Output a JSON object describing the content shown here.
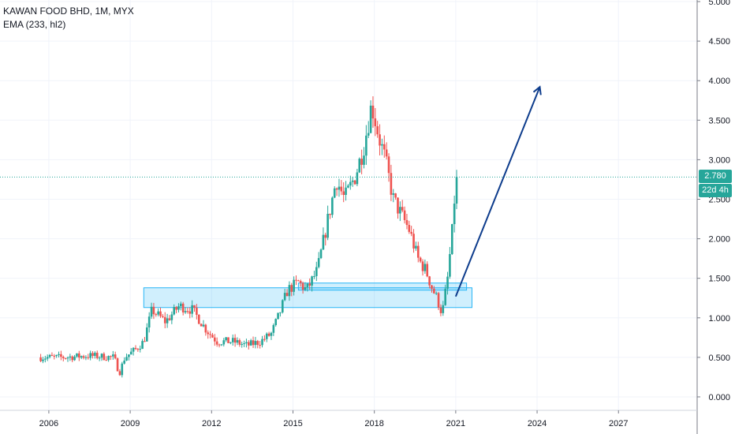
{
  "legend": {
    "symbol_line": "KAWAN FOOD BHD, 1M, MYX",
    "indicator_line": "EMA (233, hl2)"
  },
  "price_tag": {
    "value": "2.780",
    "color": "#26a69a"
  },
  "countdown_tag": {
    "value": "22d 4h",
    "color": "#26a69a"
  },
  "colors": {
    "up": "#26a69a",
    "down": "#ef5350",
    "zone": "#29b6f6",
    "arrow": "#0d3c8c",
    "grid": "#f0f3fa",
    "axis_text": "#131722"
  },
  "chart_data": {
    "type": "candlestick",
    "x_axis": {
      "range": [
        2004.2,
        2029.9
      ],
      "ticks": [
        2006,
        2009,
        2012,
        2015,
        2018,
        2021,
        2024,
        2027
      ],
      "tick_labels": [
        "2006",
        "2009",
        "2012",
        "2015",
        "2018",
        "2021",
        "2024",
        "2027"
      ]
    },
    "y_axis": {
      "range": [
        -0.17,
        5.02
      ],
      "ticks": [
        0,
        0.5,
        1,
        1.5,
        2,
        2.5,
        3,
        3.5,
        4,
        4.5,
        5
      ],
      "tick_labels": [
        "0.000",
        "0.500",
        "1.000",
        "1.500",
        "2.000",
        "2.500",
        "3.000",
        "3.500",
        "4.000",
        "4.500",
        "5.000"
      ],
      "position": "right",
      "scale": "linear"
    },
    "last_price": 2.78,
    "price_path": [
      [
        2005.7,
        0.5
      ],
      [
        2006.5,
        0.5
      ],
      [
        2007.5,
        0.52
      ],
      [
        2008.4,
        0.5
      ],
      [
        2008.6,
        0.3
      ],
      [
        2008.8,
        0.5
      ],
      [
        2009.2,
        0.6
      ],
      [
        2009.5,
        0.7
      ],
      [
        2009.8,
        1.1
      ],
      [
        2010.3,
        0.95
      ],
      [
        2010.8,
        1.15
      ],
      [
        2011.3,
        1.1
      ],
      [
        2011.8,
        0.85
      ],
      [
        2012.2,
        0.7
      ],
      [
        2012.8,
        0.7
      ],
      [
        2013.3,
        0.65
      ],
      [
        2013.8,
        0.7
      ],
      [
        2014.2,
        0.8
      ],
      [
        2014.5,
        1.05
      ],
      [
        2014.8,
        1.35
      ],
      [
        2015.2,
        1.45
      ],
      [
        2015.5,
        1.35
      ],
      [
        2015.9,
        1.6
      ],
      [
        2016.2,
        2.1
      ],
      [
        2016.6,
        2.75
      ],
      [
        2016.9,
        2.5
      ],
      [
        2017.3,
        2.8
      ],
      [
        2017.6,
        3.15
      ],
      [
        2017.9,
        3.7
      ],
      [
        2018.2,
        3.25
      ],
      [
        2018.4,
        3.0
      ],
      [
        2018.7,
        2.5
      ],
      [
        2019.0,
        2.3
      ],
      [
        2019.3,
        2.1
      ],
      [
        2019.6,
        1.75
      ],
      [
        2019.9,
        1.6
      ],
      [
        2020.1,
        1.4
      ],
      [
        2020.3,
        1.25
      ],
      [
        2020.5,
        1.05
      ],
      [
        2020.7,
        1.5
      ],
      [
        2020.9,
        2.2
      ],
      [
        2021.0,
        2.78
      ]
    ],
    "zones": [
      {
        "x_start": 2009.5,
        "x_end": 2021.6,
        "y_low": 1.13,
        "y_high": 1.38
      },
      {
        "x_start": 2015.2,
        "x_end": 2021.4,
        "y_low": 1.35,
        "y_high": 1.44
      }
    ],
    "arrow": {
      "from": [
        2021.0,
        1.27
      ],
      "to": [
        2024.1,
        3.92
      ]
    },
    "grid": true,
    "legend_position": "top-left"
  }
}
